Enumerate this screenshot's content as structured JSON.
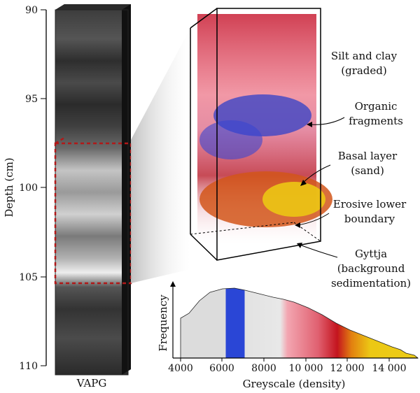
{
  "depth_axis": {
    "title": "Depth (cm)",
    "ticks": [
      "90",
      "95",
      "100",
      "105",
      "110"
    ],
    "range": [
      90,
      110
    ]
  },
  "core": {
    "label": "VAPG",
    "highlight_range_cm": [
      97.5,
      105.5
    ]
  },
  "annotations": [
    {
      "line1": "Silt and clay",
      "line2": "(graded)"
    },
    {
      "line1": "Organic",
      "line2": "fragments"
    },
    {
      "line1": "Basal layer",
      "line2": "(sand)"
    },
    {
      "line1": "Erosive lower",
      "line2": "boundary"
    },
    {
      "line1": "Gyttja",
      "line2": "(background",
      "line3": "sedimentation)"
    }
  ],
  "histogram": {
    "ylabel": "Frequency",
    "xlabel": "Greyscale (density)",
    "xticks": [
      "4000",
      "6000",
      "8000",
      "10 000",
      "12 000",
      "14 000"
    ],
    "xlim": [
      3700,
      15700
    ],
    "colors": {
      "grey": "#d8d8d8",
      "blue": "#2a46d6",
      "pink": "#f09aa6",
      "red": "#cc1a2a",
      "orange": "#e07a10",
      "yellow": "#ecc814"
    }
  }
}
